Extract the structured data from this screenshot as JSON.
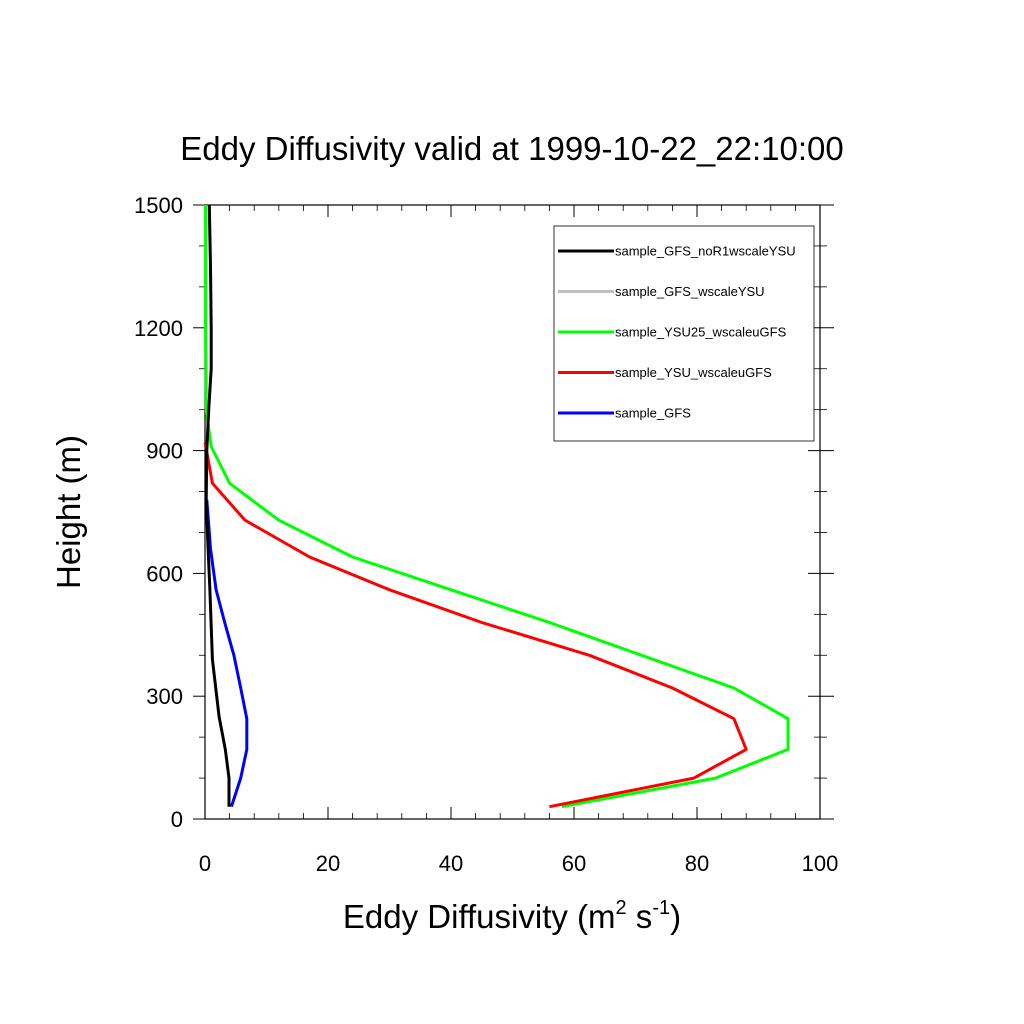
{
  "chart_data": {
    "type": "line",
    "title": "Eddy Diffusivity valid at 1999-10-22_22:10:00",
    "xlabel": {
      "base": "Eddy Diffusivity (m",
      "sup1": "2",
      "mid": " s",
      "sup2": "-1",
      "end": ")"
    },
    "ylabel": "Height (m)",
    "xlim": [
      0,
      100
    ],
    "ylim": [
      0,
      1500
    ],
    "xticks": [
      0,
      20,
      40,
      60,
      80,
      100
    ],
    "yticks": [
      0,
      300,
      600,
      900,
      1200,
      1500
    ],
    "grid": false,
    "legend_position": "top-right",
    "series": [
      {
        "name": "sample_GFS_noR1wscaleYSU",
        "color": "#000000",
        "x": [
          3.9,
          3.9,
          3.3,
          2.3,
          1.2,
          0.8,
          0.5,
          0.2,
          0.3,
          0.6,
          1.0,
          1.0,
          0.9,
          0.7
        ],
        "y": [
          30,
          100,
          170,
          250,
          390,
          560,
          660,
          780,
          900,
          1000,
          1100,
          1200,
          1350,
          1500
        ]
      },
      {
        "name": "sample_GFS_wscaleYSU",
        "color": "#c0c0c0",
        "x": [],
        "y": []
      },
      {
        "name": "sample_YSU25_wscaleuGFS",
        "color": "#00ff00",
        "x": [
          58.0,
          83.0,
          94.8,
          94.8,
          86.0,
          71.0,
          56.0,
          40.0,
          24.0,
          12.0,
          4.0,
          1.0,
          0.2,
          0.1,
          0.1,
          0.1
        ],
        "y": [
          30,
          100,
          170,
          245,
          320,
          400,
          480,
          560,
          640,
          730,
          820,
          910,
          1000,
          1200,
          1400,
          1500
        ]
      },
      {
        "name": "sample_YSU_wscaleuGFS",
        "color": "#ff0000",
        "x": [
          56.0,
          79.5,
          88.0,
          86.0,
          76.0,
          62.5,
          45.0,
          30.0,
          17.0,
          6.5,
          1.2,
          0.0
        ],
        "y": [
          30,
          100,
          170,
          245,
          320,
          400,
          480,
          560,
          640,
          730,
          820,
          920
        ]
      },
      {
        "name": "sample_GFS",
        "color": "#0000ff",
        "x": [
          4.3,
          5.8,
          6.8,
          6.8,
          5.8,
          4.7,
          3.2,
          1.8,
          0.9,
          0.3
        ],
        "y": [
          30,
          100,
          170,
          245,
          320,
          400,
          480,
          560,
          660,
          780
        ]
      }
    ]
  }
}
